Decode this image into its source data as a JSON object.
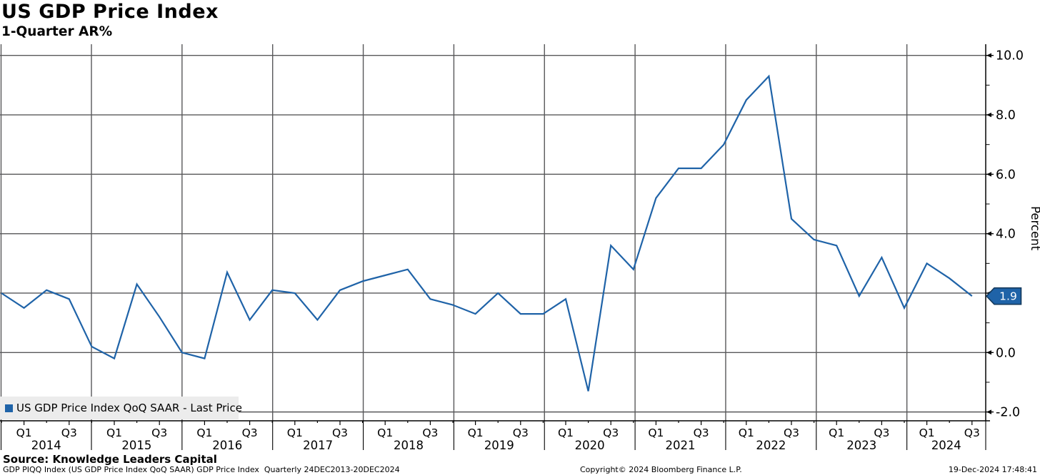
{
  "header": {
    "title": "US GDP Price Index",
    "subtitle": "1-Quarter AR%"
  },
  "legend": {
    "label": "US GDP Price Index QoQ SAAR - Last Price",
    "swatch_color": "#1f63a8"
  },
  "last_price_badge": {
    "value": 1.9,
    "label": "1.9",
    "fill": "#1f63a8",
    "border": "#14395c",
    "text_color": "#ffffff"
  },
  "chart_data": {
    "type": "line",
    "title": "US GDP Price Index",
    "subtitle": "1-Quarter AR%",
    "xlabel": "",
    "ylabel": "Percent",
    "ylim": [
      -2.0,
      10.0
    ],
    "grid": true,
    "legend_position": "bottom-left",
    "line_color": "#1f63a8",
    "grid_color": "#58585a",
    "x": [
      "2013 Q4",
      "2014 Q1",
      "2014 Q2",
      "2014 Q3",
      "2014 Q4",
      "2015 Q1",
      "2015 Q2",
      "2015 Q3",
      "2015 Q4",
      "2016 Q1",
      "2016 Q2",
      "2016 Q3",
      "2016 Q4",
      "2017 Q1",
      "2017 Q2",
      "2017 Q3",
      "2017 Q4",
      "2018 Q1",
      "2018 Q2",
      "2018 Q3",
      "2018 Q4",
      "2019 Q1",
      "2019 Q2",
      "2019 Q3",
      "2019 Q4",
      "2020 Q1",
      "2020 Q2",
      "2020 Q3",
      "2020 Q4",
      "2021 Q1",
      "2021 Q2",
      "2021 Q3",
      "2021 Q4",
      "2022 Q1",
      "2022 Q2",
      "2022 Q3",
      "2022 Q4",
      "2023 Q1",
      "2023 Q2",
      "2023 Q3",
      "2023 Q4",
      "2024 Q1",
      "2024 Q2",
      "2024 Q3"
    ],
    "series": [
      {
        "name": "US GDP Price Index QoQ SAAR",
        "values": [
          2.0,
          1.5,
          2.1,
          1.8,
          0.2,
          -0.2,
          2.3,
          1.2,
          0.0,
          -0.2,
          2.7,
          1.1,
          2.1,
          2.0,
          1.1,
          2.1,
          2.4,
          2.6,
          2.8,
          1.8,
          1.6,
          1.3,
          2.0,
          1.3,
          1.3,
          1.8,
          -1.3,
          3.6,
          2.8,
          5.2,
          6.2,
          6.2,
          7.0,
          8.5,
          9.3,
          4.5,
          3.8,
          3.6,
          1.9,
          3.2,
          1.5,
          3.0,
          2.5,
          1.9
        ]
      }
    ],
    "last_price": 1.9,
    "y_axis": {
      "title": "Percent",
      "ticks": [
        {
          "value": 10,
          "label": "10.0"
        },
        {
          "value": 8,
          "label": "8.0"
        },
        {
          "value": 6,
          "label": "6.0"
        },
        {
          "value": 4,
          "label": "4.0"
        },
        {
          "value": 2,
          "label": ""
        },
        {
          "value": 0,
          "label": "0.0"
        },
        {
          "value": -2,
          "label": "-2.0"
        }
      ],
      "minor_tick_values": [
        9,
        7,
        5,
        3,
        1,
        -1
      ]
    },
    "x_axis": {
      "years": [
        "2014",
        "2015",
        "2016",
        "2017",
        "2018",
        "2019",
        "2020",
        "2021",
        "2022",
        "2023",
        "2024"
      ],
      "quarter_labels": [
        "Q1",
        "Q3"
      ]
    }
  },
  "footer": {
    "source": "Source: Knowledge Leaders Capital",
    "description": "GDP PIQQ Index (US GDP Price Index QoQ SAAR) GDP Price Index  Quarterly 24DEC2013-20DEC2024",
    "copyright": "Copyright© 2024 Bloomberg Finance L.P.",
    "timestamp": "19-Dec-2024 17:48:41"
  }
}
